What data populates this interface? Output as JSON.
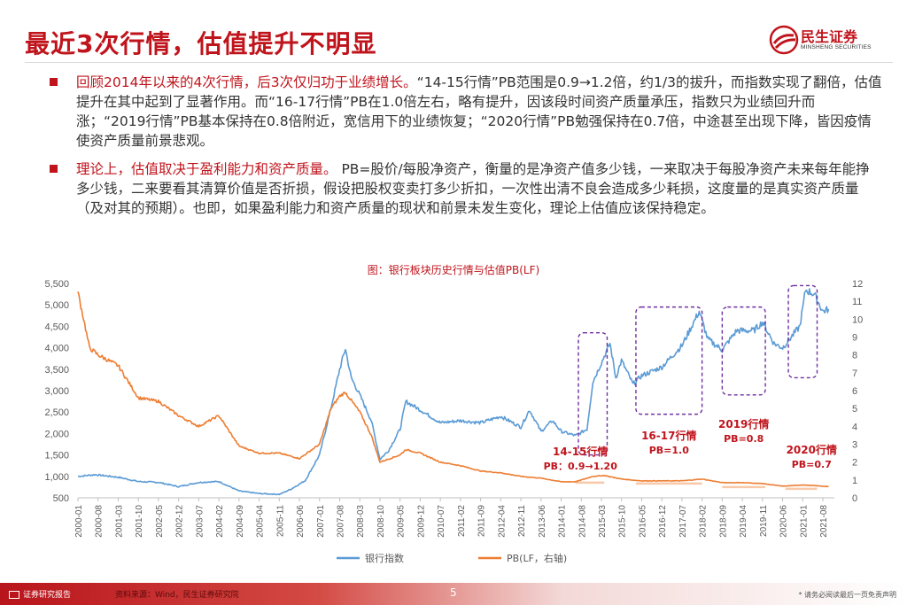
{
  "slide": {
    "title": "最近3次行情，估值提升不明显",
    "page_number": "5"
  },
  "logo": {
    "name": "民生证券",
    "subtitle": "MINSHENG SECURITIES",
    "brand_color": "#c0141c"
  },
  "bullets": [
    {
      "lead": "回顾2014年以来的4次行情，后3次仅归功于业绩增长。",
      "body": "“14-15行情”PB范围是0.9→1.2倍，约1/3的拔升，而指数实现了翻倍，估值提升在其中起到了显著作用。而“16-17行情”PB在1.0倍左右，略有提升，因该段时间资产质量承压，指数只为业绩回升而涨；“2019行情”PB基本保持在0.8倍附近，宽信用下的业绩恢复；“2020行情”PB勉强保持在0.7倍，中途甚至出现下降，皆因疫情使资产质量前景悲观。"
    },
    {
      "lead": "理论上，估值取决于盈利能力和资产质量。",
      "body": " PB=股价/每股净资产，衡量的是净资产值多少钱，一来取决于每股净资产未来每年能挣多少钱，二来要看其清算价值是否折损，假设把股权变卖打多少折扣，一次性出清不良会造成多少耗损，这度量的是真实资产质量（及对其的预期）。也即，如果盈利能力和资产质量的现状和前景未发生变化，理论上估值应该保持稳定。"
    }
  ],
  "footer": {
    "report_label": "证券研究报告",
    "source": "资料来源：Wind，民生证券研究院",
    "disclaimer": "* 请务必阅读最后一页免责声明"
  },
  "chart_data": {
    "type": "line",
    "title": "图：银行板块历史行情与估值PB(LF)",
    "x_tick_labels": [
      "2000-01",
      "2000-08",
      "2001-03",
      "2001-10",
      "2002-05",
      "2002-12",
      "2003-07",
      "2004-02",
      "2004-09",
      "2005-04",
      "2005-11",
      "2006-06",
      "2007-01",
      "2007-08",
      "2008-03",
      "2008-10",
      "2009-05",
      "2009-12",
      "2010-07",
      "2011-02",
      "2011-09",
      "2012-04",
      "2012-11",
      "2013-06",
      "2014-01",
      "2014-08",
      "2015-03",
      "2015-10",
      "2016-05",
      "2016-12",
      "2017-07",
      "2018-02",
      "2018-09",
      "2019-04",
      "2019-11",
      "2020-06",
      "2021-01",
      "2021-08"
    ],
    "y_left": {
      "min": 500,
      "max": 5500,
      "step": 500,
      "tick_labels": [
        "500",
        "1,000",
        "1,500",
        "2,000",
        "2,500",
        "3,000",
        "3,500",
        "4,000",
        "4,500",
        "5,000",
        "5,500"
      ]
    },
    "y_right": {
      "min": 0,
      "max": 12,
      "step": 1,
      "tick_labels": [
        "0",
        "1",
        "2",
        "3",
        "4",
        "5",
        "6",
        "7",
        "8",
        "9",
        "10",
        "11",
        "12"
      ]
    },
    "grid": false,
    "legend_position": "bottom",
    "series": [
      {
        "name": "银行指数",
        "axis": "left",
        "color": "#5b9bd5",
        "points": [
          [
            "2000-01",
            1000
          ],
          [
            "2000-07",
            1040
          ],
          [
            "2001-03",
            980
          ],
          [
            "2001-10",
            880
          ],
          [
            "2002-05",
            860
          ],
          [
            "2002-12",
            760
          ],
          [
            "2003-07",
            860
          ],
          [
            "2004-02",
            880
          ],
          [
            "2004-09",
            660
          ],
          [
            "2005-04",
            600
          ],
          [
            "2005-11",
            580
          ],
          [
            "2006-03",
            700
          ],
          [
            "2006-08",
            900
          ],
          [
            "2007-01",
            1500
          ],
          [
            "2007-05",
            2600
          ],
          [
            "2007-08",
            3500
          ],
          [
            "2007-10",
            3980
          ],
          [
            "2007-12",
            3300
          ],
          [
            "2008-03",
            2900
          ],
          [
            "2008-07",
            2300
          ],
          [
            "2008-10",
            1400
          ],
          [
            "2009-01",
            1600
          ],
          [
            "2009-05",
            2100
          ],
          [
            "2009-07",
            2750
          ],
          [
            "2009-12",
            2550
          ],
          [
            "2010-07",
            2250
          ],
          [
            "2011-02",
            2300
          ],
          [
            "2011-09",
            2250
          ],
          [
            "2012-04",
            2400
          ],
          [
            "2012-11",
            2150
          ],
          [
            "2013-02",
            2550
          ],
          [
            "2013-06",
            2050
          ],
          [
            "2013-10",
            2300
          ],
          [
            "2014-01",
            2050
          ],
          [
            "2014-06",
            1950
          ],
          [
            "2014-10",
            2100
          ],
          [
            "2014-12",
            3200
          ],
          [
            "2015-04",
            3800
          ],
          [
            "2015-06",
            4100
          ],
          [
            "2015-08",
            3300
          ],
          [
            "2015-10",
            3700
          ],
          [
            "2016-02",
            3150
          ],
          [
            "2016-05",
            3350
          ],
          [
            "2016-12",
            3550
          ],
          [
            "2017-07",
            4050
          ],
          [
            "2018-01",
            4850
          ],
          [
            "2018-04",
            4200
          ],
          [
            "2018-09",
            3950
          ],
          [
            "2019-02",
            4400
          ],
          [
            "2019-08",
            4400
          ],
          [
            "2019-11",
            4600
          ],
          [
            "2020-03",
            4100
          ],
          [
            "2020-06",
            4000
          ],
          [
            "2020-12",
            4500
          ],
          [
            "2021-02",
            5350
          ],
          [
            "2021-05",
            5250
          ],
          [
            "2021-08",
            4850
          ],
          [
            "2021-10",
            4900
          ]
        ]
      },
      {
        "name": "PB(LF，右轴)",
        "axis": "right",
        "color": "#ed7d31",
        "points": [
          [
            "2000-01",
            11.5
          ],
          [
            "2000-03",
            10.0
          ],
          [
            "2000-05",
            8.4
          ],
          [
            "2000-08",
            8.0
          ],
          [
            "2001-03",
            7.4
          ],
          [
            "2001-10",
            5.6
          ],
          [
            "2002-05",
            5.4
          ],
          [
            "2002-12",
            4.6
          ],
          [
            "2003-07",
            4.0
          ],
          [
            "2004-02",
            4.6
          ],
          [
            "2004-09",
            2.9
          ],
          [
            "2005-04",
            2.5
          ],
          [
            "2005-11",
            2.5
          ],
          [
            "2006-06",
            2.2
          ],
          [
            "2007-01",
            3.0
          ],
          [
            "2007-05",
            5.0
          ],
          [
            "2007-08",
            5.7
          ],
          [
            "2007-10",
            5.9
          ],
          [
            "2008-03",
            4.8
          ],
          [
            "2008-07",
            3.5
          ],
          [
            "2008-10",
            2.0
          ],
          [
            "2009-05",
            2.4
          ],
          [
            "2009-07",
            2.7
          ],
          [
            "2009-12",
            2.5
          ],
          [
            "2010-07",
            2.0
          ],
          [
            "2011-02",
            1.8
          ],
          [
            "2011-09",
            1.5
          ],
          [
            "2012-04",
            1.4
          ],
          [
            "2012-11",
            1.2
          ],
          [
            "2013-06",
            1.1
          ],
          [
            "2014-01",
            0.9
          ],
          [
            "2014-06",
            0.9
          ],
          [
            "2014-12",
            1.2
          ],
          [
            "2015-04",
            1.25
          ],
          [
            "2015-10",
            1.05
          ],
          [
            "2016-05",
            0.95
          ],
          [
            "2017-07",
            0.95
          ],
          [
            "2018-02",
            1.05
          ],
          [
            "2018-09",
            0.85
          ],
          [
            "2019-04",
            0.85
          ],
          [
            "2019-11",
            0.8
          ],
          [
            "2020-06",
            0.65
          ],
          [
            "2021-01",
            0.72
          ],
          [
            "2021-08",
            0.65
          ],
          [
            "2021-10",
            0.62
          ]
        ]
      }
    ],
    "annotations": [
      {
        "label": "14-15行情",
        "sublabel": "PB：0.9→1.20",
        "box": {
          "from": "2014-07",
          "to": "2015-05",
          "y_top": 4350,
          "y_bottom": 1500
        },
        "pb_range": [
          "2014-06",
          "2015-04"
        ],
        "pb_value": 1.05
      },
      {
        "label": "16-17行情",
        "sublabel": "PB=1.0",
        "box": {
          "from": "2016-03",
          "to": "2018-02",
          "y_top": 4950,
          "y_bottom": 2450
        },
        "pb_range": [
          "2016-03",
          "2018-02"
        ],
        "pb_value": 1.0
      },
      {
        "label": "2019行情",
        "sublabel": "PB=0.8",
        "box": {
          "from": "2018-09",
          "to": "2019-12",
          "y_top": 4950,
          "y_bottom": 2900
        },
        "pb_range": [
          "2018-09",
          "2019-12"
        ],
        "pb_value": 0.8
      },
      {
        "label": "2020行情",
        "sublabel": "PB=0.7",
        "box": {
          "from": "2020-08",
          "to": "2021-06",
          "y_top": 5450,
          "y_bottom": 3300
        },
        "pb_range": [
          "2020-07",
          "2021-06"
        ],
        "pb_value": 0.7
      }
    ],
    "annotation_color": "#7030a0",
    "pb_band_color": "#f8c9a9",
    "annotation_text_color": "#c0141c"
  }
}
